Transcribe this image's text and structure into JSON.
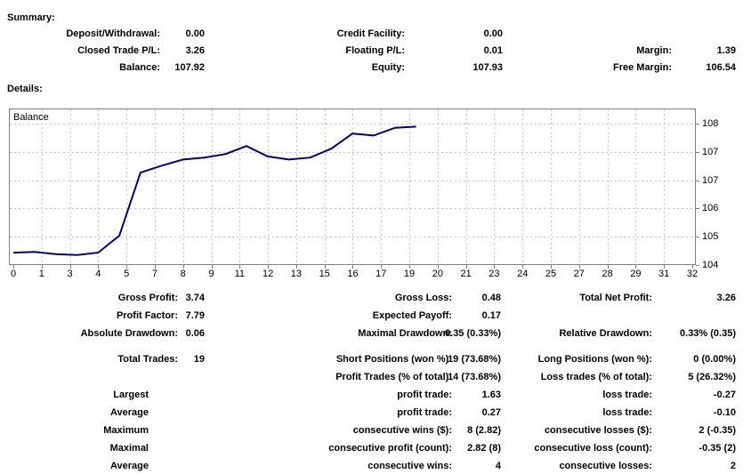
{
  "summary": {
    "heading": "Summary:",
    "rows": [
      [
        "Deposit/Withdrawal:",
        "0.00",
        "Credit Facility:",
        "0.00",
        "",
        ""
      ],
      [
        "Closed Trade P/L:",
        "3.26",
        "Floating P/L:",
        "0.01",
        "Margin:",
        "1.39"
      ],
      [
        "Balance:",
        "107.92",
        "Equity:",
        "107.93",
        "Free Margin:",
        "106.54"
      ]
    ]
  },
  "details": {
    "heading": "Details:",
    "rows": [
      [
        "Gross Profit:",
        "3.74",
        "Gross Loss:",
        "0.48",
        "Total Net Profit:",
        "3.26"
      ],
      [
        "Profit Factor:",
        "7.79",
        "Expected Payoff:",
        "0.17",
        "",
        ""
      ],
      [
        "Absolute Drawdown:",
        "0.06",
        "Maximal Drawdown:",
        "0.35 (0.33%)",
        "Relative Drawdown:",
        "0.33% (0.35)"
      ],
      [
        "Total Trades:",
        "19",
        "Short Positions (won %):",
        "19 (73.68%)",
        "Long Positions (won %):",
        "0 (0.00%)"
      ],
      [
        "",
        "",
        "Profit Trades (% of total):",
        "14 (73.68%)",
        "Loss trades (% of total):",
        "5 (26.32%)"
      ],
      [
        "Largest",
        "",
        "profit trade:",
        "1.63",
        "loss trade:",
        "-0.27"
      ],
      [
        "Average",
        "",
        "profit trade:",
        "0.27",
        "loss trade:",
        "-0.10"
      ],
      [
        "Maximum",
        "",
        "consecutive wins ($):",
        "8 (2.82)",
        "consecutive losses ($):",
        "2 (-0.35)"
      ],
      [
        "Maximal",
        "",
        "consecutive profit (count):",
        "2.82 (8)",
        "consecutive loss (count):",
        "-0.35 (2)"
      ],
      [
        "Average",
        "",
        "consecutive wins:",
        "4",
        "consecutive losses:",
        "2"
      ]
    ]
  },
  "chart_data": {
    "type": "line",
    "title": "",
    "legend": "Balance",
    "x": [
      0,
      1,
      2,
      3,
      4,
      5,
      6,
      7,
      8,
      9,
      10,
      11,
      12,
      13,
      14,
      15,
      16,
      17,
      18,
      19
    ],
    "series": [
      {
        "name": "Balance",
        "values": [
          104.66,
          104.68,
          104.62,
          104.6,
          104.66,
          105.1,
          106.73,
          106.91,
          107.07,
          107.12,
          107.21,
          107.42,
          107.15,
          107.07,
          107.12,
          107.35,
          107.74,
          107.69,
          107.89,
          107.92
        ]
      }
    ],
    "x_tick_labels": [
      "0",
      "1",
      "3",
      "4",
      "5",
      "7",
      "8",
      "9",
      "11",
      "12",
      "13",
      "15",
      "16",
      "17",
      "19",
      "20",
      "21",
      "23",
      "24",
      "25",
      "27",
      "28",
      "29",
      "31",
      "32"
    ],
    "y_tick_labels": [
      "104",
      "105",
      "106",
      "107",
      "107",
      "108"
    ],
    "xlim": [
      -0.21,
      32.2
    ],
    "ylim": [
      104.34,
      108.39
    ],
    "grid": "dashed",
    "legend_position": "top-left",
    "line_color": "#000080",
    "grid_color": "#c8c8c8",
    "border_color": "#808080"
  }
}
